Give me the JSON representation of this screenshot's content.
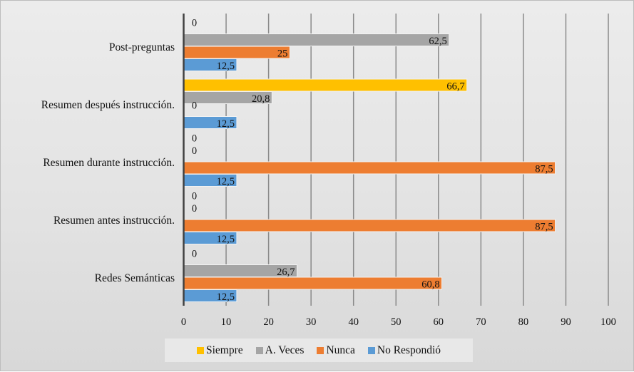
{
  "chart_data": {
    "type": "bar",
    "orientation": "horizontal",
    "title": "",
    "xlabel": "",
    "ylabel": "",
    "categories": [
      "Post-preguntas",
      "Resumen después instrucción.",
      "Resumen durante instrucción.",
      "Resumen antes instrucción.",
      "Redes Semánticas"
    ],
    "series": [
      {
        "name": "Siempre",
        "color": "#FFC000",
        "values": [
          0,
          66.7,
          0,
          0,
          0
        ],
        "labels": [
          "0",
          "66,7",
          "0",
          "0",
          "0"
        ]
      },
      {
        "name": "A. Veces",
        "color": "#A5A5A5",
        "values": [
          62.5,
          20.8,
          0,
          0,
          26.7
        ],
        "labels": [
          "62,5",
          "20,8",
          "0",
          "0",
          "26,7"
        ]
      },
      {
        "name": "Nunca",
        "color": "#ED7D31",
        "values": [
          25,
          0,
          87.5,
          87.5,
          60.8
        ],
        "labels": [
          "25",
          "0",
          "87,5",
          "87,5",
          "60,8"
        ]
      },
      {
        "name": "No Respondió",
        "color": "#5B9BD5",
        "values": [
          12.5,
          12.5,
          12.5,
          12.5,
          12.5
        ],
        "labels": [
          "12,5",
          "12,5",
          "12,5",
          "12,5",
          "12,5"
        ]
      }
    ],
    "xlim": [
      0,
      100
    ],
    "xticks": [
      "0",
      "10",
      "20",
      "30",
      "40",
      "50",
      "60",
      "70",
      "80",
      "90",
      "100"
    ],
    "grid": true,
    "legend_position": "bottom"
  }
}
